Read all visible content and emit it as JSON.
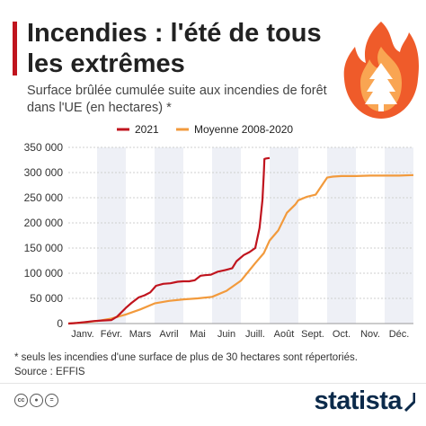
{
  "header": {
    "title": "Incendies : l'été de tous les extrêmes",
    "subtitle": "Surface brûlée cumulée suite aux incendies de forêt dans l'UE (en hectares) *"
  },
  "footer": {
    "note": "* seuls les incendies d'une surface de plus de 30 hectares sont répertoriés.",
    "source": "Source : EFFIS",
    "logo": "statista"
  },
  "colors": {
    "accent": "#c0141e",
    "series_2021": "#c0141e",
    "series_avg": "#f29a3c",
    "flame_outer": "#ef5b2a",
    "flame_inner": "#f9a552"
  },
  "icons": [
    "forest-fire-icon",
    "creative-commons-icon",
    "attribution-icon",
    "equals-icon",
    "statista-logo"
  ],
  "chart_data": {
    "type": "line",
    "title": "",
    "xlabel": "",
    "ylabel": "",
    "categories": [
      "Janv.",
      "Févr.",
      "Mars",
      "Avril",
      "Mai",
      "Juin",
      "Juill.",
      "Août",
      "Sept.",
      "Oct.",
      "Nov.",
      "Déc."
    ],
    "x_range": [
      0,
      12
    ],
    "ylim": [
      0,
      350000
    ],
    "y_ticks": [
      0,
      50000,
      100000,
      150000,
      200000,
      250000,
      300000,
      350000
    ],
    "y_tick_labels": [
      "0",
      "50 000",
      "100 000",
      "150 000",
      "200 000",
      "250 000",
      "300 000",
      "350 000"
    ],
    "grid": "horizontal",
    "alternating_month_shading": true,
    "legend_position": "top",
    "series": [
      {
        "name": "2021",
        "x": [
          0,
          0.3,
          0.6,
          0.9,
          1.2,
          1.5,
          1.7,
          2.0,
          2.2,
          2.45,
          2.65,
          2.85,
          3.05,
          3.3,
          3.55,
          3.8,
          4.0,
          4.2,
          4.4,
          4.6,
          4.75,
          4.95,
          5.2,
          5.45,
          5.7,
          5.85,
          6.1,
          6.3,
          6.5,
          6.65,
          6.75,
          6.8,
          6.82,
          6.88,
          7.0
        ],
        "values": [
          0,
          1000,
          3000,
          5000,
          6000,
          7000,
          14000,
          31000,
          41000,
          52000,
          56000,
          62000,
          75000,
          79000,
          80000,
          83000,
          84000,
          84000,
          86000,
          95000,
          96000,
          97000,
          103000,
          106000,
          110000,
          124000,
          136000,
          142000,
          150000,
          190000,
          245000,
          300000,
          327000,
          328000,
          329000
        ]
      },
      {
        "name": "Moyenne 2008-2020",
        "x": [
          0,
          0.5,
          1.0,
          1.5,
          2.0,
          2.5,
          3.0,
          3.5,
          4.0,
          4.5,
          5.0,
          5.5,
          6.0,
          6.5,
          6.8,
          7.0,
          7.3,
          7.6,
          7.9,
          8.0,
          8.3,
          8.6,
          9.0,
          9.2,
          9.5,
          10.0,
          10.5,
          11.0,
          11.5,
          12.0
        ],
        "values": [
          0,
          2000,
          5000,
          10000,
          18000,
          28000,
          40000,
          45000,
          48000,
          50000,
          53000,
          65000,
          85000,
          120000,
          140000,
          165000,
          185000,
          220000,
          237000,
          245000,
          252000,
          256000,
          290000,
          292000,
          293000,
          293000,
          294000,
          294000,
          294000,
          295000
        ]
      }
    ]
  }
}
